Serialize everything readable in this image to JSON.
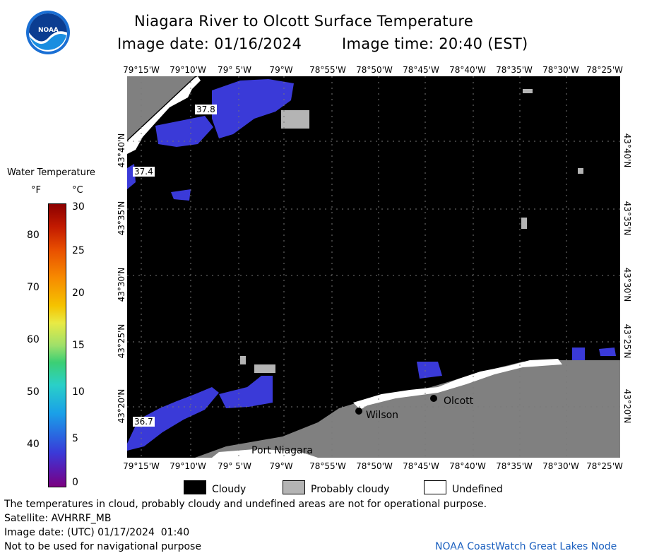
{
  "header": {
    "title": "Niagara River to Olcott Surface Temperature",
    "image_date": "Image date: 01/16/2024",
    "image_time": "Image time: 20:40 (EST)"
  },
  "logo": {
    "text": "NOAA"
  },
  "lon_labels": [
    "79°15'W",
    "79°10'W",
    "79° 5'W",
    "79°W",
    "78°55'W",
    "78°50'W",
    "78°45'W",
    "78°40'W",
    "78°35'W",
    "78°30'W",
    "78°25'W"
  ],
  "lat_labels": [
    "43°40'N",
    "43°35'N",
    "43°30'N",
    "43°25'N",
    "43°20'N"
  ],
  "colorbar": {
    "title": "Water Temperature",
    "unit_f": "°F",
    "unit_c": "°C",
    "f_ticks": [
      "80",
      "70",
      "60",
      "50",
      "40"
    ],
    "c_ticks": [
      "30",
      "25",
      "20",
      "15",
      "10",
      "5",
      "0"
    ]
  },
  "map_labels": {
    "temp_1": "37.8",
    "temp_2": "37.4",
    "temp_3": "36.7",
    "olcott": "Olcott",
    "wilson": "Wilson",
    "port_niagara": "Port Niagara"
  },
  "legend": {
    "cloudy": "Cloudy",
    "probably_cloudy": "Probably cloudy",
    "undefined": "Undefined"
  },
  "footer": {
    "disclaimer": "The temperatures in cloud, probably cloudy and undefined areas are not for operational purpose.",
    "satellite": "Satellite: AVHRRF_MB",
    "utc_date": "Image date: (UTC) 01/17/2024  01:40",
    "nav_note": "Not to be used for navigational purpose",
    "credit": "NOAA CoastWatch Great Lakes Node"
  },
  "colors": {
    "cloudy": "#000000",
    "probably_cloudy": "#b4b4b4",
    "land": "#808080",
    "water_cold": "#3a3ad8",
    "credit": "#1a5fbf"
  }
}
